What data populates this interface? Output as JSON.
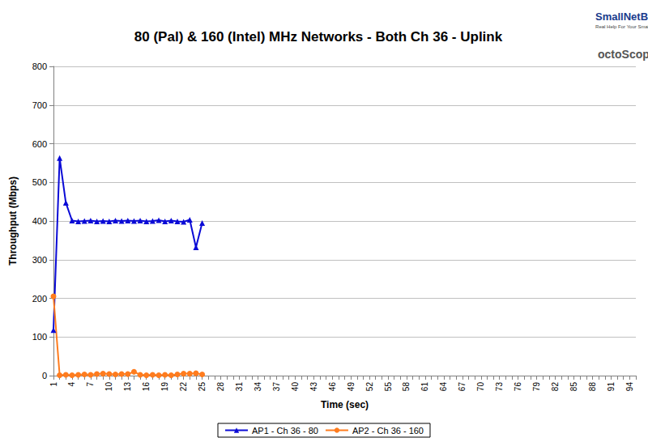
{
  "chart_data": {
    "type": "line",
    "title": "80 (Pal) & 160 (Intel) MHz Networks - Both Ch 36 - Uplink",
    "x_label": "Time (sec)",
    "y_label": "Throughput (Mbps)",
    "annotations": [
      "SmallNetBuilder",
      "Real Help For Your Small Network",
      "octoScope"
    ],
    "categories": [
      1,
      null,
      null,
      4,
      null,
      null,
      7,
      null,
      null,
      10,
      null,
      null,
      13,
      null,
      null,
      16,
      null,
      null,
      19,
      null,
      null,
      22,
      null,
      null,
      25,
      null,
      null,
      28,
      null,
      null,
      31,
      null,
      null,
      34,
      null,
      null,
      37,
      null,
      null,
      40,
      null,
      null,
      43,
      null,
      null,
      46,
      null,
      null,
      49,
      null,
      null,
      52,
      null,
      null,
      55,
      null,
      null,
      58,
      null,
      null,
      61,
      null,
      null,
      64,
      null,
      null,
      67,
      null,
      null,
      70,
      null,
      null,
      73,
      null,
      null,
      76,
      null,
      null,
      79,
      null,
      null,
      82,
      null,
      null,
      85,
      null,
      null,
      88,
      null,
      null,
      91,
      null,
      null,
      94,
      null
    ],
    "series": [
      {
        "name": "AP1 - Ch 36 - 80",
        "color": "#0a0ad6",
        "marker": "triangle",
        "values": [
          118,
          563,
          447,
          401,
          399,
          400,
          401,
          399,
          400,
          399,
          401,
          400,
          401,
          400,
          401,
          399,
          400,
          402,
          399,
          401,
          399,
          398,
          403,
          332,
          395,
          null,
          null,
          null,
          null,
          null,
          null,
          null,
          null,
          null,
          null,
          null,
          null,
          null,
          null,
          null,
          null,
          null,
          null,
          null,
          null,
          null,
          null,
          null,
          null,
          null,
          null,
          null,
          null,
          null,
          null,
          null,
          null,
          null,
          null,
          null,
          null,
          null,
          null,
          null,
          null,
          null,
          null,
          null,
          null,
          null,
          null,
          null,
          null,
          null,
          null,
          null,
          null,
          null,
          null,
          null,
          null,
          null,
          null,
          null,
          null,
          null,
          null,
          null,
          null,
          null,
          null,
          null,
          null,
          null,
          null
        ]
      },
      {
        "name": "AP2 - Ch 36 - 160",
        "color": "#ff7c1e",
        "marker": "circle",
        "values": [
          205,
          1,
          2,
          1,
          2,
          3,
          2,
          4,
          5,
          4,
          3,
          4,
          4,
          10,
          2,
          1,
          2,
          1,
          2,
          1,
          3,
          5,
          5,
          6,
          3,
          null,
          null,
          null,
          null,
          null,
          null,
          null,
          null,
          null,
          null,
          null,
          null,
          null,
          null,
          null,
          null,
          null,
          null,
          null,
          null,
          null,
          null,
          null,
          null,
          null,
          null,
          null,
          null,
          null,
          null,
          null,
          null,
          null,
          null,
          null,
          null,
          null,
          null,
          null,
          null,
          null,
          null,
          null,
          null,
          null,
          null,
          null,
          null,
          null,
          null,
          null,
          null,
          null,
          null,
          null,
          null,
          null,
          null,
          null,
          null,
          null,
          null,
          null,
          null,
          null,
          null,
          null,
          null,
          null,
          null
        ]
      }
    ],
    "ylim": [
      0,
      800
    ],
    "yticks": [
      0,
      100,
      200,
      300,
      400,
      500,
      600,
      700,
      800
    ],
    "grid": true,
    "legend": "bottom"
  }
}
